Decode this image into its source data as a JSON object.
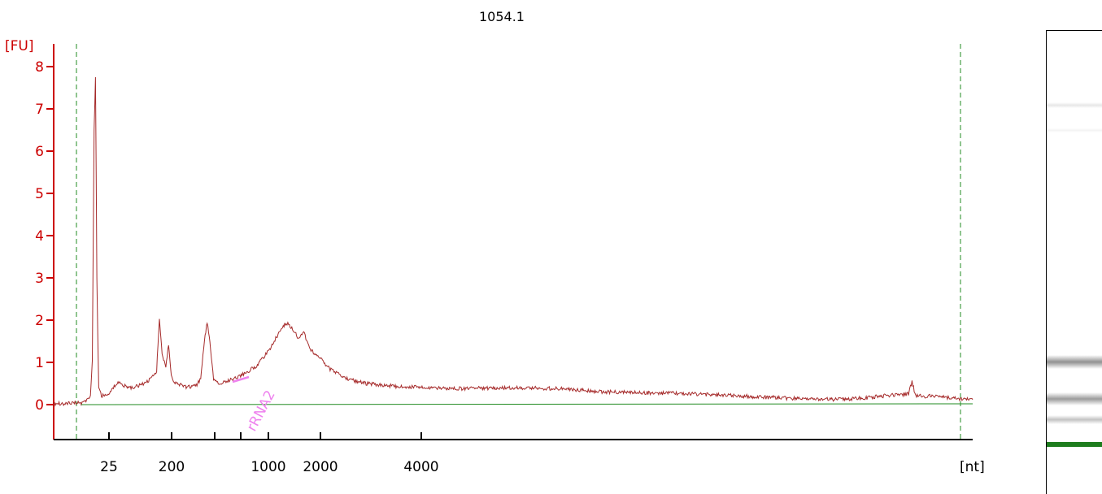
{
  "chart_data": {
    "type": "line",
    "title": "1054.1",
    "ylabel": "[FU]",
    "xlabel": "[nt]",
    "ylim": [
      -0.8,
      8.5
    ],
    "yticks": [
      0,
      1,
      2,
      3,
      4,
      5,
      6,
      7,
      8
    ],
    "xticks": [
      {
        "label": "25"
      },
      {
        "label": "200"
      },
      {
        "label": ""
      },
      {
        "label": ""
      },
      {
        "label": "1000"
      },
      {
        "label": "2000"
      },
      {
        "label": "4000"
      }
    ],
    "annotation": {
      "label": "rRNA2"
    },
    "series": [
      {
        "color": "#a52a2a",
        "points": [
          [
            0.0,
            0.02
          ],
          [
            0.5,
            0.03
          ],
          [
            1.0,
            0.01
          ],
          [
            2.5,
            0.05
          ],
          [
            3.0,
            0.03
          ],
          [
            3.6,
            0.12
          ],
          [
            4.0,
            0.2
          ],
          [
            4.2,
            1.0
          ],
          [
            4.4,
            6.5
          ],
          [
            4.55,
            7.75
          ],
          [
            4.7,
            3.0
          ],
          [
            4.9,
            0.4
          ],
          [
            5.2,
            0.2
          ],
          [
            6.0,
            0.25
          ],
          [
            7.0,
            0.55
          ],
          [
            7.5,
            0.45
          ],
          [
            8.5,
            0.4
          ],
          [
            10.0,
            0.5
          ],
          [
            10.5,
            0.6
          ],
          [
            11.2,
            0.8
          ],
          [
            11.5,
            2.0
          ],
          [
            11.8,
            1.2
          ],
          [
            12.2,
            0.9
          ],
          [
            12.5,
            1.4
          ],
          [
            12.8,
            0.7
          ],
          [
            13.2,
            0.5
          ],
          [
            14.5,
            0.42
          ],
          [
            15.5,
            0.45
          ],
          [
            16.0,
            0.6
          ],
          [
            16.4,
            1.5
          ],
          [
            16.7,
            1.95
          ],
          [
            17.0,
            1.5
          ],
          [
            17.4,
            0.6
          ],
          [
            18.0,
            0.5
          ],
          [
            20.0,
            0.65
          ],
          [
            22.0,
            0.9
          ],
          [
            23.5,
            1.3
          ],
          [
            24.5,
            1.7
          ],
          [
            25.3,
            1.95
          ],
          [
            26.0,
            1.8
          ],
          [
            26.7,
            1.55
          ],
          [
            27.2,
            1.7
          ],
          [
            28.0,
            1.3
          ],
          [
            29.0,
            1.1
          ],
          [
            30.0,
            0.85
          ],
          [
            32.0,
            0.6
          ],
          [
            34.0,
            0.5
          ],
          [
            38.0,
            0.42
          ],
          [
            44.0,
            0.38
          ],
          [
            50.0,
            0.4
          ],
          [
            55.0,
            0.38
          ],
          [
            60.0,
            0.3
          ],
          [
            65.0,
            0.28
          ],
          [
            70.0,
            0.25
          ],
          [
            75.0,
            0.2
          ],
          [
            80.0,
            0.15
          ],
          [
            85.0,
            0.12
          ],
          [
            88.0,
            0.15
          ],
          [
            90.0,
            0.2
          ],
          [
            93.0,
            0.25
          ],
          [
            93.4,
            0.55
          ],
          [
            93.8,
            0.2
          ],
          [
            96.0,
            0.2
          ],
          [
            98.0,
            0.15
          ],
          [
            100.0,
            0.12
          ]
        ]
      },
      {
        "color": "#228b22",
        "points": [
          [
            3.0,
            0.0
          ],
          [
            100.0,
            0.02
          ]
        ]
      }
    ],
    "marker_color": "#ee82ee",
    "axis_color": "#cc0000",
    "gel": {
      "marker_color": "#1e7d1e",
      "bands": [
        {
          "position": 0.155,
          "intensity": 0.12
        },
        {
          "position": 0.21,
          "intensity": 0.06
        },
        {
          "position": 0.7,
          "intensity": 0.55
        },
        {
          "position": 0.78,
          "intensity": 0.5
        },
        {
          "position": 0.83,
          "intensity": 0.3
        }
      ]
    }
  }
}
